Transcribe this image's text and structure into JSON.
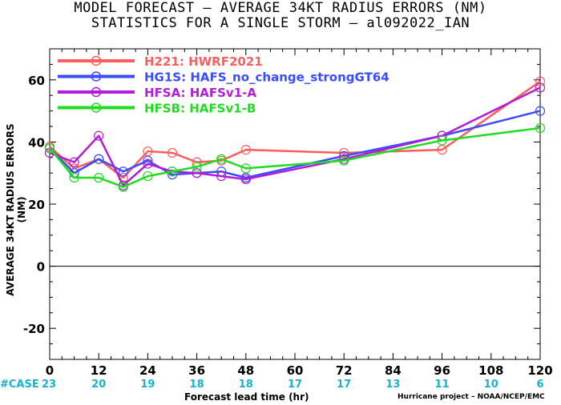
{
  "title_line1": "MODEL FORECAST – AVERAGE 34KT RADIUS ERRORS (NM)",
  "title_line2": "STATISTICS FOR A SINGLE STORM – al092022_IAN",
  "ylabel": "AVERAGE 34KT RADIUS ERRORS (NM)",
  "xlabel": "Forecast lead time (hr)",
  "credit": "Hurricane project – NOAA/NCEP/EMC",
  "case_label": "#CASE",
  "colors": {
    "H221": "#ff5c5c",
    "HG1S": "#3a4cff",
    "HFSA": "#b21dd6",
    "HFSB": "#1edc1e",
    "case_counts": "#17b2cf"
  },
  "chart_data": {
    "type": "line",
    "xlabel": "Forecast lead time (hr)",
    "ylabel": "AVERAGE 34KT RADIUS ERRORS (NM)",
    "xlim": [
      0,
      120
    ],
    "ylim": [
      -30,
      70
    ],
    "xticks": [
      0,
      12,
      24,
      36,
      48,
      60,
      72,
      84,
      96,
      108,
      120
    ],
    "yticks": [
      -20,
      0,
      20,
      40,
      60
    ],
    "case_counts": [
      23,
      20,
      19,
      18,
      18,
      17,
      17,
      13,
      11,
      10,
      6
    ],
    "legend_position": "top-left",
    "series": [
      {
        "name": "H221: HWRF2021",
        "color": "#ff5c5c",
        "x": [
          0,
          6,
          12,
          18,
          24,
          30,
          36,
          42,
          48,
          72,
          96,
          120
        ],
        "y": [
          38.5,
          31.5,
          34.5,
          28.5,
          37.0,
          36.5,
          33.5,
          34.0,
          37.5,
          36.5,
          37.5,
          59.5
        ]
      },
      {
        "name": "HG1S: HAFS_no_change_strongGT64",
        "color": "#3a4cff",
        "x": [
          0,
          6,
          12,
          18,
          24,
          30,
          36,
          42,
          48,
          72,
          96,
          120
        ],
        "y": [
          38.0,
          30.0,
          34.5,
          30.5,
          34.0,
          29.5,
          30.0,
          30.5,
          28.5,
          35.5,
          42.0,
          50.0
        ]
      },
      {
        "name": "HFSA: HAFSv1-A",
        "color": "#b21dd6",
        "x": [
          0,
          6,
          12,
          18,
          24,
          30,
          36,
          42,
          48,
          72,
          96,
          120
        ],
        "y": [
          36.5,
          33.5,
          42.0,
          26.0,
          33.0,
          30.5,
          30.0,
          29.0,
          28.0,
          34.5,
          42.0,
          57.5
        ]
      },
      {
        "name": "HFSB: HAFSv1-B",
        "color": "#1edc1e",
        "x": [
          0,
          6,
          12,
          18,
          24,
          30,
          36,
          42,
          48,
          72,
          96,
          120
        ],
        "y": [
          38.0,
          28.5,
          28.5,
          25.5,
          29.0,
          30.5,
          32.0,
          34.5,
          31.5,
          34.0,
          40.5,
          44.5
        ]
      }
    ]
  }
}
